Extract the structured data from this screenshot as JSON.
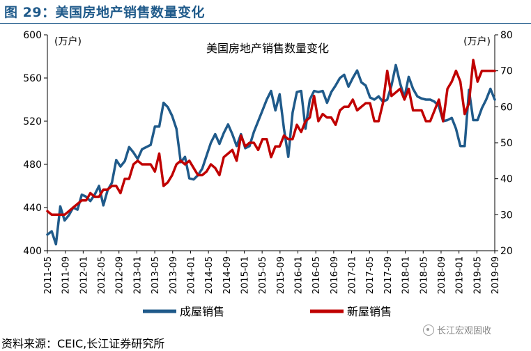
{
  "figure": {
    "title": "图 29：美国房地产销售数量变化",
    "source": "资料来源：CEIC,长江证券研究所",
    "watermark": "长江宏观固收"
  },
  "chart_data": {
    "type": "line",
    "title": "美国房地产销售数量变化",
    "y_left": {
      "label": "(万户)",
      "min": 400,
      "max": 600,
      "ticks": [
        400,
        440,
        480,
        520,
        560,
        600
      ]
    },
    "y_right": {
      "label": "(万户)",
      "min": 20,
      "max": 80,
      "ticks": [
        20,
        30,
        40,
        50,
        60,
        70,
        80
      ]
    },
    "x_range": [
      "2011-05",
      "2019-09"
    ],
    "x_ticks": [
      "2011-05",
      "2011-09",
      "2012-01",
      "2012-05",
      "2012-09",
      "2013-01",
      "2013-05",
      "2013-09",
      "2014-01",
      "2014-05",
      "2014-09",
      "2015-01",
      "2015-05",
      "2015-09",
      "2016-01",
      "2016-05",
      "2016-09",
      "2017-01",
      "2017-05",
      "2017-09",
      "2018-01",
      "2018-05",
      "2018-09",
      "2019-01",
      "2019-05",
      "2019-09"
    ],
    "legend_position": "bottom",
    "grid": false,
    "series": [
      {
        "name": "成屋销售",
        "axis": "left",
        "color": "#1f5a8a",
        "values": [
          415,
          418,
          406,
          441,
          428,
          433,
          440,
          438,
          452,
          450,
          446,
          452,
          460,
          442,
          456,
          463,
          484,
          478,
          483,
          496,
          491,
          485,
          494,
          496,
          498,
          515,
          515,
          537,
          533,
          525,
          513,
          482,
          487,
          467,
          466,
          470,
          476,
          488,
          500,
          508,
          499,
          509,
          517,
          508,
          497,
          508,
          495,
          497,
          510,
          520,
          530,
          540,
          548,
          530,
          545,
          513,
          487,
          528,
          547,
          548,
          513,
          540,
          548,
          547,
          548,
          537,
          547,
          553,
          560,
          563,
          552,
          560,
          567,
          556,
          553,
          542,
          540,
          543,
          538,
          540,
          553,
          572,
          555,
          542,
          561,
          550,
          543,
          541,
          540,
          540,
          538,
          534,
          520,
          521,
          523,
          513,
          497,
          497,
          549,
          521,
          521,
          532,
          540,
          550,
          540
        ]
      },
      {
        "name": "新屋销售",
        "axis": "right",
        "color": "#c00000",
        "values": [
          31,
          30,
          30,
          30,
          30,
          31,
          32,
          33,
          34,
          34,
          36,
          35,
          35,
          37,
          37,
          38,
          38,
          36,
          40,
          40,
          44,
          45,
          44,
          44,
          44,
          42,
          47,
          38,
          39,
          41,
          44,
          45,
          44,
          45,
          43,
          41,
          41,
          42,
          44,
          43,
          41,
          46,
          47,
          48,
          45,
          52,
          49,
          50,
          50,
          48,
          51,
          51,
          46,
          49,
          49,
          52,
          51,
          51,
          55,
          53,
          56,
          57,
          63,
          56,
          58,
          57,
          57,
          55,
          59,
          60,
          60,
          62,
          59,
          60,
          61,
          61,
          56,
          56,
          61,
          70,
          63,
          64,
          65,
          62,
          65,
          59,
          59,
          59,
          56,
          56,
          59,
          62,
          56,
          65,
          67,
          70,
          67,
          58,
          61,
          73,
          67,
          70,
          70,
          70,
          70
        ]
      }
    ]
  }
}
